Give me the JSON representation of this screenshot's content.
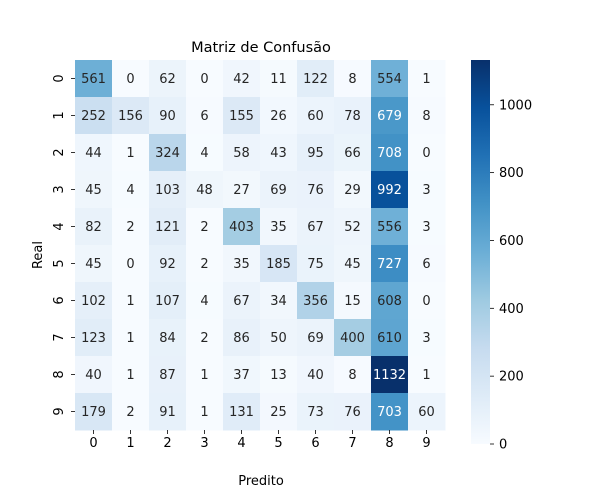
{
  "chart_data": {
    "type": "heatmap",
    "title": "Matriz de Confusão",
    "xlabel": "Predito",
    "ylabel": "Real",
    "x_categories": [
      "0",
      "1",
      "2",
      "3",
      "4",
      "5",
      "6",
      "7",
      "8",
      "9"
    ],
    "y_categories": [
      "0",
      "1",
      "2",
      "3",
      "4",
      "5",
      "6",
      "7",
      "8",
      "9"
    ],
    "values": [
      [
        561,
        0,
        62,
        0,
        42,
        11,
        122,
        8,
        554,
        1
      ],
      [
        252,
        156,
        90,
        6,
        155,
        26,
        60,
        78,
        679,
        8
      ],
      [
        44,
        1,
        324,
        4,
        58,
        43,
        95,
        66,
        708,
        0
      ],
      [
        45,
        4,
        103,
        48,
        27,
        69,
        76,
        29,
        992,
        3
      ],
      [
        82,
        2,
        121,
        2,
        403,
        35,
        67,
        52,
        556,
        3
      ],
      [
        45,
        0,
        92,
        2,
        35,
        185,
        75,
        45,
        727,
        6
      ],
      [
        102,
        1,
        107,
        4,
        67,
        34,
        356,
        15,
        608,
        0
      ],
      [
        123,
        1,
        84,
        2,
        86,
        50,
        69,
        400,
        610,
        3
      ],
      [
        40,
        1,
        87,
        1,
        37,
        13,
        40,
        8,
        1132,
        1
      ],
      [
        179,
        2,
        91,
        1,
        131,
        25,
        73,
        76,
        703,
        60
      ]
    ],
    "colormap": "Blues",
    "vmin": 0,
    "vmax": 1132,
    "colorbar_ticks": [
      0,
      200,
      400,
      600,
      800,
      1000
    ]
  }
}
